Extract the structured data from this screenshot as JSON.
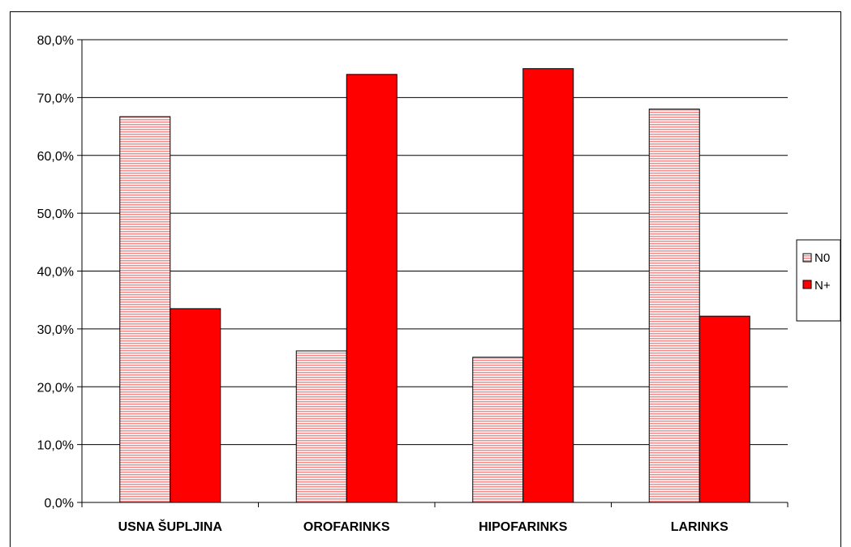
{
  "chart_data": {
    "type": "bar",
    "categories": [
      "USNA ŠUPLJINA",
      "OROFARINKS",
      "HIPOFARINKS",
      "LARINKS"
    ],
    "series": [
      {
        "name": "N0",
        "values": [
          66.7,
          26.2,
          25.1,
          68.0
        ],
        "color": "#f4b8b8",
        "pattern": "horizontal-stripes"
      },
      {
        "name": "N+",
        "values": [
          33.5,
          74.0,
          75.0,
          32.2
        ],
        "color": "#ff0000",
        "pattern": "solid"
      }
    ],
    "ylim": [
      0,
      80
    ],
    "yticks": [
      "0,0%",
      "10,0%",
      "20,0%",
      "30,0%",
      "40,0%",
      "50,0%",
      "60,0%",
      "70,0%",
      "80,0%"
    ],
    "grid": true,
    "legend": "right"
  }
}
